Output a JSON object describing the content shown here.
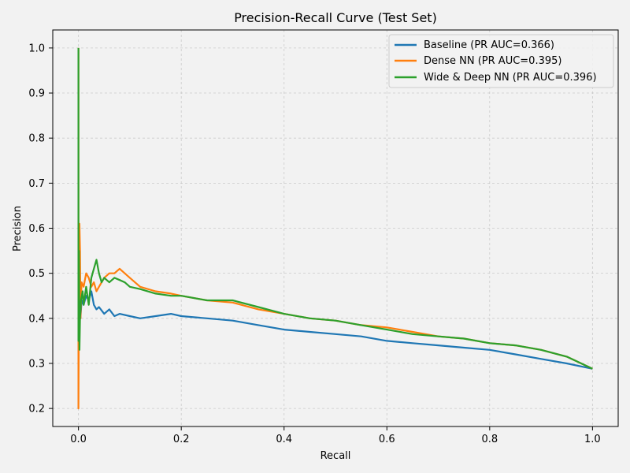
{
  "chart_data": {
    "type": "line",
    "title": "Precision-Recall Curve (Test Set)",
    "xlabel": "Recall",
    "ylabel": "Precision",
    "xlim": [
      -0.05,
      1.05
    ],
    "ylim": [
      0.16,
      1.04
    ],
    "xticks": [
      0.0,
      0.2,
      0.4,
      0.6,
      0.8,
      1.0
    ],
    "xtick_labels": [
      "0.0",
      "0.2",
      "0.4",
      "0.6",
      "0.8",
      "1.0"
    ],
    "yticks": [
      0.2,
      0.3,
      0.4,
      0.5,
      0.6,
      0.7,
      0.8,
      0.9,
      1.0
    ],
    "ytick_labels": [
      "0.2",
      "0.3",
      "0.4",
      "0.5",
      "0.6",
      "0.7",
      "0.8",
      "0.9",
      "1.0"
    ],
    "grid": true,
    "legend_position": "top-right",
    "background_color": "#f2f2f2",
    "series": [
      {
        "name": "Baseline (PR AUC=0.366)",
        "color": "#1f77b4",
        "x": [
          0.0,
          0.001,
          0.002,
          0.004,
          0.006,
          0.01,
          0.015,
          0.02,
          0.025,
          0.03,
          0.035,
          0.04,
          0.05,
          0.06,
          0.07,
          0.08,
          0.1,
          0.12,
          0.15,
          0.18,
          0.2,
          0.25,
          0.3,
          0.35,
          0.4,
          0.45,
          0.5,
          0.55,
          0.6,
          0.65,
          0.7,
          0.75,
          0.8,
          0.85,
          0.9,
          0.95,
          1.0
        ],
        "y": [
          0.36,
          0.38,
          0.42,
          0.4,
          0.44,
          0.43,
          0.45,
          0.44,
          0.46,
          0.43,
          0.42,
          0.425,
          0.41,
          0.42,
          0.405,
          0.41,
          0.405,
          0.4,
          0.405,
          0.41,
          0.405,
          0.4,
          0.395,
          0.385,
          0.375,
          0.37,
          0.365,
          0.36,
          0.35,
          0.345,
          0.34,
          0.335,
          0.33,
          0.32,
          0.31,
          0.3,
          0.288
        ]
      },
      {
        "name": "Dense NN (PR AUC=0.395)",
        "color": "#ff7f0e",
        "x": [
          0.0,
          0.0,
          0.001,
          0.002,
          0.003,
          0.004,
          0.006,
          0.01,
          0.015,
          0.02,
          0.025,
          0.03,
          0.035,
          0.04,
          0.05,
          0.06,
          0.07,
          0.08,
          0.09,
          0.1,
          0.12,
          0.15,
          0.18,
          0.2,
          0.25,
          0.3,
          0.35,
          0.4,
          0.45,
          0.5,
          0.55,
          0.6,
          0.65,
          0.7,
          0.75,
          0.8,
          0.85,
          0.9,
          0.95,
          1.0
        ],
        "y": [
          1.0,
          0.2,
          0.45,
          0.61,
          0.55,
          0.4,
          0.48,
          0.47,
          0.5,
          0.49,
          0.47,
          0.48,
          0.46,
          0.47,
          0.49,
          0.5,
          0.5,
          0.51,
          0.5,
          0.49,
          0.47,
          0.46,
          0.455,
          0.45,
          0.44,
          0.435,
          0.42,
          0.41,
          0.4,
          0.395,
          0.385,
          0.38,
          0.37,
          0.36,
          0.355,
          0.345,
          0.34,
          0.33,
          0.315,
          0.288
        ]
      },
      {
        "name": "Wide & Deep NN (PR AUC=0.396)",
        "color": "#2ca02c",
        "x": [
          0.0,
          0.0,
          0.001,
          0.002,
          0.003,
          0.005,
          0.008,
          0.01,
          0.015,
          0.02,
          0.025,
          0.03,
          0.035,
          0.04,
          0.045,
          0.05,
          0.06,
          0.07,
          0.08,
          0.09,
          0.1,
          0.12,
          0.15,
          0.18,
          0.2,
          0.25,
          0.3,
          0.35,
          0.4,
          0.45,
          0.5,
          0.55,
          0.6,
          0.65,
          0.7,
          0.75,
          0.8,
          0.85,
          0.9,
          0.95,
          1.0
        ],
        "y": [
          1.0,
          0.35,
          0.55,
          0.33,
          0.4,
          0.44,
          0.46,
          0.43,
          0.47,
          0.43,
          0.49,
          0.51,
          0.53,
          0.5,
          0.48,
          0.49,
          0.48,
          0.49,
          0.485,
          0.48,
          0.47,
          0.465,
          0.455,
          0.45,
          0.45,
          0.44,
          0.44,
          0.425,
          0.41,
          0.4,
          0.395,
          0.385,
          0.375,
          0.365,
          0.36,
          0.355,
          0.345,
          0.34,
          0.33,
          0.315,
          0.288
        ]
      }
    ]
  }
}
